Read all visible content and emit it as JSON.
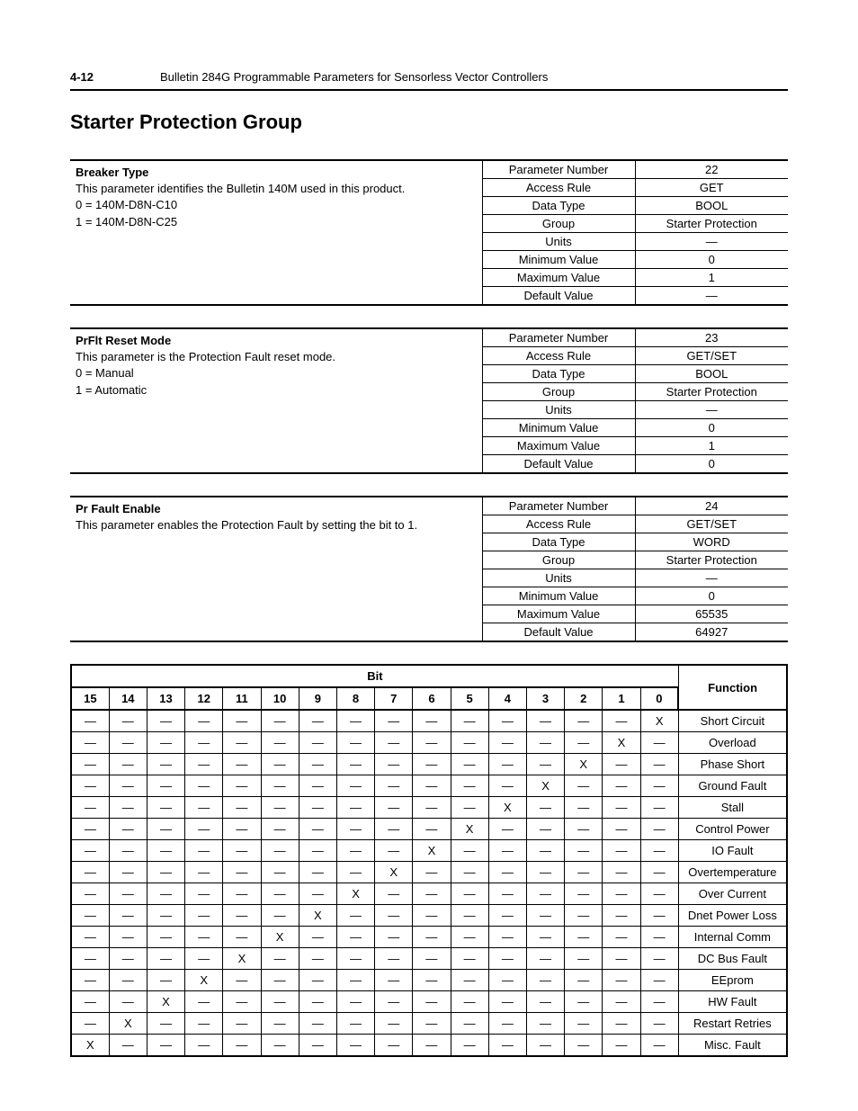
{
  "header": {
    "page_number": "4-12",
    "title": "Bulletin 284G Programmable Parameters for Sensorless Vector Controllers"
  },
  "section_title": "Starter Protection Group",
  "param_labels": {
    "parameter_number": "Parameter Number",
    "access_rule": "Access Rule",
    "data_type": "Data Type",
    "group": "Group",
    "units": "Units",
    "minimum_value": "Minimum Value",
    "maximum_value": "Maximum Value",
    "default_value": "Default Value"
  },
  "parameters": [
    {
      "name": "Breaker Type",
      "desc_lines": [
        "This parameter identifies the Bulletin 140M used in this product.",
        "0 = 140M-D8N-C10",
        "1 = 140M-D8N-C25"
      ],
      "values": {
        "parameter_number": "22",
        "access_rule": "GET",
        "data_type": "BOOL",
        "group": "Starter Protection",
        "units": "—",
        "minimum_value": "0",
        "maximum_value": "1",
        "default_value": "—"
      }
    },
    {
      "name": "PrFlt Reset Mode",
      "desc_lines": [
        "This parameter is the Protection Fault reset mode.",
        "0 = Manual",
        "1 = Automatic"
      ],
      "values": {
        "parameter_number": "23",
        "access_rule": "GET/SET",
        "data_type": "BOOL",
        "group": "Starter Protection",
        "units": "—",
        "minimum_value": "0",
        "maximum_value": "1",
        "default_value": "0"
      }
    },
    {
      "name": "Pr Fault Enable",
      "desc_lines": [
        "This parameter enables the Protection Fault by setting the bit to 1."
      ],
      "values": {
        "parameter_number": "24",
        "access_rule": "GET/SET",
        "data_type": "WORD",
        "group": "Starter Protection",
        "units": "—",
        "minimum_value": "0",
        "maximum_value": "65535",
        "default_value": "64927"
      }
    }
  ],
  "bit_table": {
    "bit_header": "Bit",
    "function_header": "Function",
    "bit_columns": [
      "15",
      "14",
      "13",
      "12",
      "11",
      "10",
      "9",
      "8",
      "7",
      "6",
      "5",
      "4",
      "3",
      "2",
      "1",
      "0"
    ],
    "dash": "—",
    "x": "X",
    "rows": [
      {
        "function": "Short Circuit",
        "set_bit": 0
      },
      {
        "function": "Overload",
        "set_bit": 1
      },
      {
        "function": "Phase Short",
        "set_bit": 2
      },
      {
        "function": "Ground Fault",
        "set_bit": 3
      },
      {
        "function": "Stall",
        "set_bit": 4
      },
      {
        "function": "Control Power",
        "set_bit": 5
      },
      {
        "function": "IO Fault",
        "set_bit": 6
      },
      {
        "function": "Overtemperature",
        "set_bit": 7
      },
      {
        "function": "Over Current",
        "set_bit": 8
      },
      {
        "function": "Dnet Power Loss",
        "set_bit": 9
      },
      {
        "function": "Internal Comm",
        "set_bit": 10
      },
      {
        "function": "DC Bus Fault",
        "set_bit": 11
      },
      {
        "function": "EEprom",
        "set_bit": 12
      },
      {
        "function": "HW Fault",
        "set_bit": 13
      },
      {
        "function": "Restart Retries",
        "set_bit": 14
      },
      {
        "function": "Misc. Fault",
        "set_bit": 15
      }
    ]
  }
}
